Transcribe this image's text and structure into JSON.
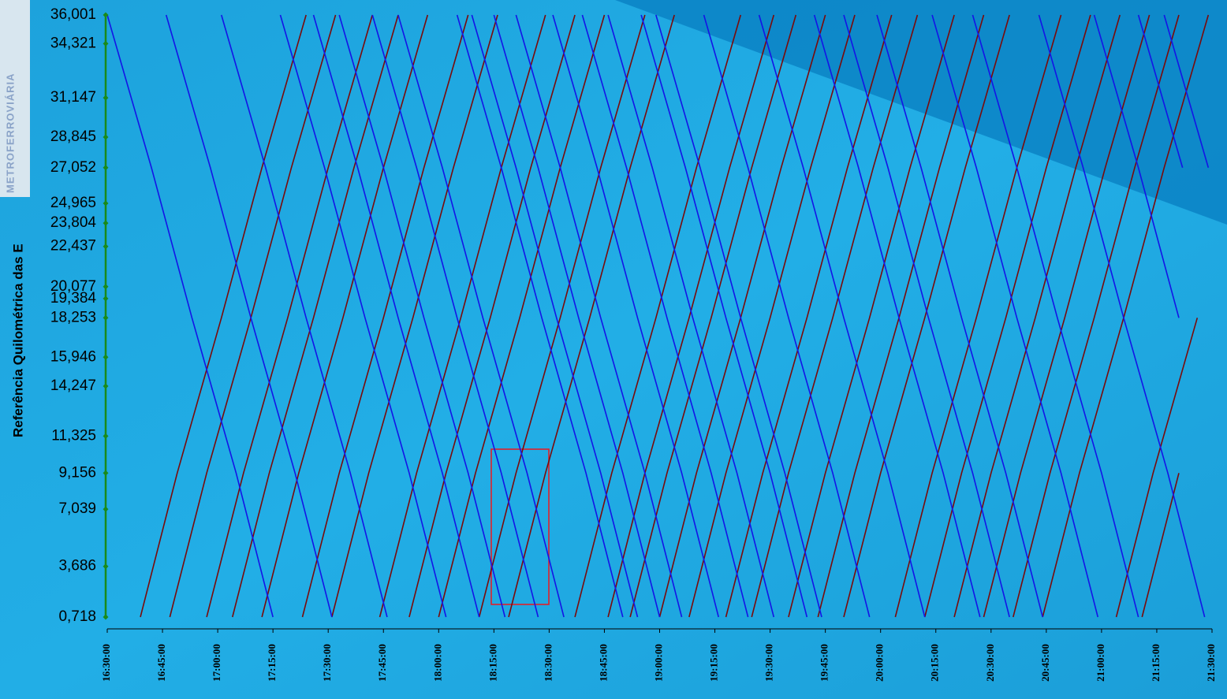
{
  "logo": "METROFERROVIÁRIA",
  "chart_data": {
    "type": "line",
    "y_label": "Referência Quilométrica das E",
    "xlim": [
      990,
      1290
    ],
    "ylim": [
      0.718,
      36.001
    ],
    "xticks": [
      {
        "value": 990,
        "label": "16:30:00"
      },
      {
        "value": 1005,
        "label": "16:45:00"
      },
      {
        "value": 1020,
        "label": "17:00:00"
      },
      {
        "value": 1035,
        "label": "17:15:00"
      },
      {
        "value": 1050,
        "label": "17:30:00"
      },
      {
        "value": 1065,
        "label": "17:45:00"
      },
      {
        "value": 1080,
        "label": "18:00:00"
      },
      {
        "value": 1095,
        "label": "18:15:00"
      },
      {
        "value": 1110,
        "label": "18:30:00"
      },
      {
        "value": 1125,
        "label": "18:45:00"
      },
      {
        "value": 1140,
        "label": "19:00:00"
      },
      {
        "value": 1155,
        "label": "19:15:00"
      },
      {
        "value": 1170,
        "label": "19:30:00"
      },
      {
        "value": 1185,
        "label": "19:45:00"
      },
      {
        "value": 1200,
        "label": "20:00:00"
      },
      {
        "value": 1215,
        "label": "20:15:00"
      },
      {
        "value": 1230,
        "label": "20:30:00"
      },
      {
        "value": 1245,
        "label": "20:45:00"
      },
      {
        "value": 1260,
        "label": "21:00:00"
      },
      {
        "value": 1275,
        "label": "21:15:00"
      },
      {
        "value": 1290,
        "label": "21:30:00"
      }
    ],
    "yticks": [
      {
        "value": 36.001,
        "label": "36,001"
      },
      {
        "value": 34.321,
        "label": "34,321"
      },
      {
        "value": 31.147,
        "label": "31,147"
      },
      {
        "value": 28.845,
        "label": "28,845"
      },
      {
        "value": 27.052,
        "label": "27,052"
      },
      {
        "value": 24.965,
        "label": "24,965"
      },
      {
        "value": 23.804,
        "label": "23,804"
      },
      {
        "value": 22.437,
        "label": "22,437"
      },
      {
        "value": 20.077,
        "label": "20,077"
      },
      {
        "value": 19.384,
        "label": "19,384"
      },
      {
        "value": 18.253,
        "label": "18,253"
      },
      {
        "value": 15.946,
        "label": "15,946"
      },
      {
        "value": 14.247,
        "label": "14,247"
      },
      {
        "value": 11.325,
        "label": "11,325"
      },
      {
        "value": 9.156,
        "label": "9,156"
      },
      {
        "value": 7.039,
        "label": "7,039"
      },
      {
        "value": 3.686,
        "label": "3,686"
      },
      {
        "value": 0.718,
        "label": "0,718"
      }
    ],
    "axis_color": "#1a8a1a",
    "series": [
      {
        "color": "#7a0a0a",
        "x": [
          999,
          1009,
          1021,
          1032,
          1044
        ],
        "values": [
          0.718,
          9.156,
          18.253,
          27.052,
          36.001
        ]
      },
      {
        "color": "#7a0a0a",
        "x": [
          1007,
          1017,
          1029,
          1040,
          1052
        ],
        "values": [
          0.718,
          9.156,
          18.253,
          27.052,
          36.001
        ]
      },
      {
        "color": "#7a0a0a",
        "x": [
          1017,
          1027,
          1039,
          1050,
          1062
        ],
        "values": [
          0.718,
          9.156,
          18.253,
          27.052,
          36.001
        ]
      },
      {
        "color": "#7a0a0a",
        "x": [
          1024,
          1034,
          1046,
          1057,
          1069
        ],
        "values": [
          0.718,
          9.156,
          18.253,
          27.052,
          36.001
        ]
      },
      {
        "color": "#7a0a0a",
        "x": [
          1032,
          1042,
          1054,
          1065,
          1077
        ],
        "values": [
          0.718,
          9.156,
          18.253,
          27.052,
          36.001
        ]
      },
      {
        "color": "#7a0a0a",
        "x": [
          1043,
          1053,
          1065,
          1076,
          1088
        ],
        "values": [
          0.718,
          9.156,
          18.253,
          27.052,
          36.001
        ]
      },
      {
        "color": "#7a0a0a",
        "x": [
          1051,
          1061,
          1073,
          1084,
          1096
        ],
        "values": [
          0.718,
          9.156,
          18.253,
          27.052,
          36.001
        ]
      },
      {
        "color": "#7a0a0a",
        "x": [
          1064,
          1074,
          1086,
          1097,
          1109
        ],
        "values": [
          0.718,
          9.156,
          18.253,
          27.052,
          36.001
        ]
      },
      {
        "color": "#7a0a0a",
        "x": [
          1072,
          1082,
          1094,
          1105,
          1117
        ],
        "values": [
          0.718,
          9.156,
          18.253,
          27.052,
          36.001
        ]
      },
      {
        "color": "#7a0a0a",
        "x": [
          1080,
          1090,
          1102,
          1113,
          1125
        ],
        "values": [
          0.718,
          9.156,
          18.253,
          27.052,
          36.001
        ]
      },
      {
        "color": "#7a0a0a",
        "x": [
          1091,
          1101,
          1113,
          1124,
          1136
        ],
        "values": [
          0.718,
          9.156,
          18.253,
          27.052,
          36.001
        ]
      },
      {
        "color": "#7a0a0a",
        "x": [
          1099,
          1109,
          1121,
          1132,
          1144
        ],
        "values": [
          0.718,
          9.156,
          18.253,
          27.052,
          36.001
        ]
      },
      {
        "color": "#7a0a0a",
        "x": [
          1117,
          1127,
          1139,
          1150,
          1162
        ],
        "values": [
          0.718,
          9.156,
          18.253,
          27.052,
          36.001
        ]
      },
      {
        "color": "#7a0a0a",
        "x": [
          1126,
          1136,
          1148,
          1159,
          1171
        ],
        "values": [
          0.718,
          9.156,
          18.253,
          27.052,
          36.001
        ]
      },
      {
        "color": "#7a0a0a",
        "x": [
          1132,
          1142,
          1154,
          1165,
          1177
        ],
        "values": [
          0.718,
          9.156,
          18.253,
          27.052,
          36.001
        ]
      },
      {
        "color": "#7a0a0a",
        "x": [
          1140,
          1150,
          1162,
          1173,
          1185
        ],
        "values": [
          0.718,
          9.156,
          18.253,
          27.052,
          36.001
        ]
      },
      {
        "color": "#7a0a0a",
        "x": [
          1148,
          1158,
          1170,
          1181,
          1193
        ],
        "values": [
          0.718,
          9.156,
          18.253,
          27.052,
          36.001
        ]
      },
      {
        "color": "#7a0a0a",
        "x": [
          1158,
          1168,
          1180,
          1191,
          1203
        ],
        "values": [
          0.718,
          9.156,
          18.253,
          27.052,
          36.001
        ]
      },
      {
        "color": "#7a0a0a",
        "x": [
          1165,
          1175,
          1187,
          1198,
          1210
        ],
        "values": [
          0.718,
          9.156,
          18.253,
          27.052,
          36.001
        ]
      },
      {
        "color": "#7a0a0a",
        "x": [
          1175,
          1185,
          1197,
          1208,
          1220
        ],
        "values": [
          0.718,
          9.156,
          18.253,
          27.052,
          36.001
        ]
      },
      {
        "color": "#7a0a0a",
        "x": [
          1183,
          1193,
          1205,
          1216,
          1228
        ],
        "values": [
          0.718,
          9.156,
          18.253,
          27.052,
          36.001
        ]
      },
      {
        "color": "#7a0a0a",
        "x": [
          1190,
          1200,
          1212,
          1223,
          1235
        ],
        "values": [
          0.718,
          9.156,
          18.253,
          27.052,
          36.001
        ]
      },
      {
        "color": "#7a0a0a",
        "x": [
          1204,
          1214,
          1226,
          1237,
          1249
        ],
        "values": [
          0.718,
          9.156,
          18.253,
          27.052,
          36.001
        ]
      },
      {
        "color": "#7a0a0a",
        "x": [
          1212,
          1222,
          1234,
          1245,
          1257
        ],
        "values": [
          0.718,
          9.156,
          18.253,
          27.052,
          36.001
        ]
      },
      {
        "color": "#7a0a0a",
        "x": [
          1220,
          1230,
          1242,
          1253,
          1265
        ],
        "values": [
          0.718,
          9.156,
          18.253,
          27.052,
          36.001
        ]
      },
      {
        "color": "#7a0a0a",
        "x": [
          1228,
          1238,
          1250,
          1261,
          1273
        ],
        "values": [
          0.718,
          9.156,
          18.253,
          27.052,
          36.001
        ]
      },
      {
        "color": "#7a0a0a",
        "x": [
          1236,
          1246,
          1258,
          1269,
          1281
        ],
        "values": [
          0.718,
          9.156,
          18.253,
          27.052,
          36.001
        ]
      },
      {
        "color": "#7a0a0a",
        "x": [
          1244,
          1254,
          1266,
          1277,
          1289
        ],
        "values": [
          0.718,
          9.156,
          18.253,
          27.052,
          36.001
        ]
      },
      {
        "color": "#7a0a0a",
        "x": [
          1264,
          1274,
          1286
        ],
        "values": [
          0.718,
          9.156,
          18.253
        ]
      },
      {
        "color": "#7a0a0a",
        "x": [
          1271,
          1281
        ],
        "values": [
          0.718,
          9.156
        ]
      },
      {
        "color": "#1414e6",
        "x": [
          990,
          1002,
          1013,
          1025,
          1035
        ],
        "values": [
          36.001,
          27.052,
          18.253,
          9.156,
          0.718
        ]
      },
      {
        "color": "#1414e6",
        "x": [
          1006,
          1018,
          1029,
          1041,
          1051
        ],
        "values": [
          36.001,
          27.052,
          18.253,
          9.156,
          0.718
        ]
      },
      {
        "color": "#1414e6",
        "x": [
          1021,
          1033,
          1044,
          1056,
          1066
        ],
        "values": [
          36.001,
          27.052,
          18.253,
          9.156,
          0.718
        ]
      },
      {
        "color": "#1414e6",
        "x": [
          1037,
          1049,
          1060,
          1072,
          1082
        ],
        "values": [
          36.001,
          27.052,
          18.253,
          9.156,
          0.718
        ]
      },
      {
        "color": "#1414e6",
        "x": [
          1046,
          1058,
          1069,
          1081,
          1091
        ],
        "values": [
          36.001,
          27.052,
          18.253,
          9.156,
          0.718
        ]
      },
      {
        "color": "#1414e6",
        "x": [
          1053,
          1065,
          1076,
          1088,
          1098
        ],
        "values": [
          36.001,
          27.052,
          18.253,
          9.156,
          0.718
        ]
      },
      {
        "color": "#1414e6",
        "x": [
          1062,
          1074,
          1085,
          1097,
          1107
        ],
        "values": [
          36.001,
          27.052,
          18.253,
          9.156,
          0.718
        ]
      },
      {
        "color": "#1414e6",
        "x": [
          1069,
          1081,
          1092,
          1104,
          1114
        ],
        "values": [
          36.001,
          27.052,
          18.253,
          9.156,
          0.718
        ]
      },
      {
        "color": "#1414e6",
        "x": [
          1085,
          1097,
          1108,
          1120,
          1130
        ],
        "values": [
          36.001,
          27.052,
          18.253,
          9.156,
          0.718
        ]
      },
      {
        "color": "#1414e6",
        "x": [
          1089,
          1101,
          1112,
          1124,
          1134
        ],
        "values": [
          36.001,
          27.052,
          18.253,
          9.156,
          0.718
        ]
      },
      {
        "color": "#1414e6",
        "x": [
          1095,
          1107,
          1118,
          1130,
          1140
        ],
        "values": [
          36.001,
          27.052,
          18.253,
          9.156,
          0.718
        ]
      },
      {
        "color": "#1414e6",
        "x": [
          1101,
          1113,
          1124,
          1136,
          1146
        ],
        "values": [
          36.001,
          27.052,
          18.253,
          9.156,
          0.718
        ]
      },
      {
        "color": "#1414e6",
        "x": [
          1111,
          1123,
          1134,
          1146,
          1156
        ],
        "values": [
          36.001,
          27.052,
          18.253,
          9.156,
          0.718
        ]
      },
      {
        "color": "#1414e6",
        "x": [
          1119,
          1131,
          1142,
          1154,
          1164
        ],
        "values": [
          36.001,
          27.052,
          18.253,
          9.156,
          0.718
        ]
      },
      {
        "color": "#1414e6",
        "x": [
          1126,
          1138,
          1149,
          1161,
          1171
        ],
        "values": [
          36.001,
          27.052,
          18.253,
          9.156,
          0.718
        ]
      },
      {
        "color": "#1414e6",
        "x": [
          1135,
          1147,
          1158,
          1170,
          1180
        ],
        "values": [
          36.001,
          27.052,
          18.253,
          9.156,
          0.718
        ]
      },
      {
        "color": "#1414e6",
        "x": [
          1139,
          1151,
          1162,
          1174,
          1184
        ],
        "values": [
          36.001,
          27.052,
          18.253,
          9.156,
          0.718
        ]
      },
      {
        "color": "#1414e6",
        "x": [
          1152,
          1164,
          1175,
          1187,
          1197
        ],
        "values": [
          36.001,
          27.052,
          18.253,
          9.156,
          0.718
        ]
      },
      {
        "color": "#1414e6",
        "x": [
          1167,
          1179,
          1190,
          1202,
          1212
        ],
        "values": [
          36.001,
          27.052,
          18.253,
          9.156,
          0.718
        ]
      },
      {
        "color": "#1414e6",
        "x": [
          1182,
          1194,
          1205,
          1217,
          1227
        ],
        "values": [
          36.001,
          27.052,
          18.253,
          9.156,
          0.718
        ]
      },
      {
        "color": "#1414e6",
        "x": [
          1190,
          1202,
          1213,
          1225,
          1235
        ],
        "values": [
          36.001,
          27.052,
          18.253,
          9.156,
          0.718
        ]
      },
      {
        "color": "#1414e6",
        "x": [
          1199,
          1211,
          1222,
          1234,
          1244
        ],
        "values": [
          36.001,
          27.052,
          18.253,
          9.156,
          0.718
        ]
      },
      {
        "color": "#1414e6",
        "x": [
          1214,
          1226,
          1237,
          1249,
          1259
        ],
        "values": [
          36.001,
          27.052,
          18.253,
          9.156,
          0.718
        ]
      },
      {
        "color": "#1414e6",
        "x": [
          1225,
          1237,
          1248,
          1260,
          1270
        ],
        "values": [
          36.001,
          27.052,
          18.253,
          9.156,
          0.718
        ]
      },
      {
        "color": "#1414e6",
        "x": [
          1243,
          1255,
          1266,
          1278,
          1288
        ],
        "values": [
          36.001,
          27.052,
          18.253,
          9.156,
          0.718
        ]
      },
      {
        "color": "#1414e6",
        "x": [
          1258,
          1270,
          1281
        ],
        "values": [
          36.001,
          27.052,
          18.253
        ]
      },
      {
        "color": "#1414e6",
        "x": [
          1270,
          1282
        ],
        "values": [
          36.001,
          27.052
        ]
      },
      {
        "color": "#1414e6",
        "x": [
          1277,
          1289
        ],
        "values": [
          36.001,
          27.052
        ]
      }
    ]
  }
}
